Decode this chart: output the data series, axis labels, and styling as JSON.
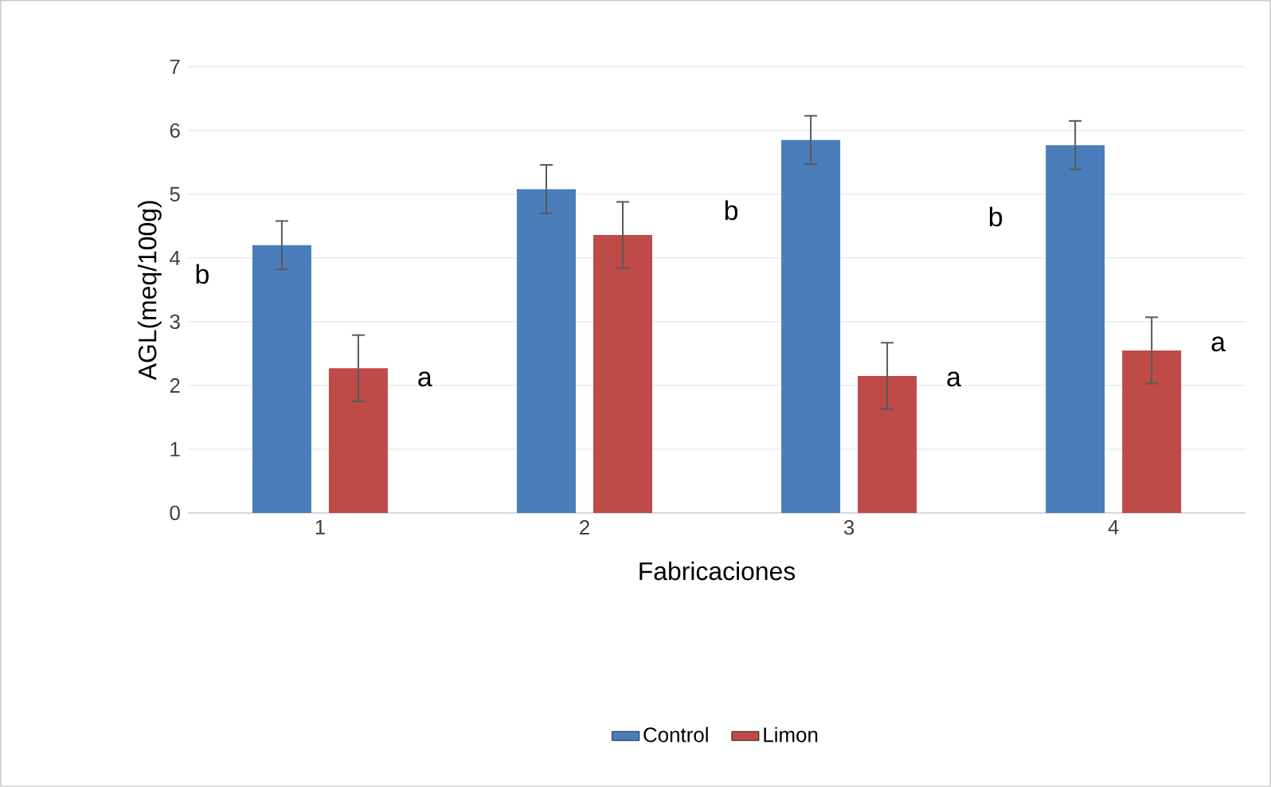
{
  "chart_data": {
    "type": "bar",
    "xlabel": "Fabricaciones",
    "ylabel": "AGL(meq/100g)",
    "categories": [
      "1",
      "2",
      "3",
      "4"
    ],
    "series": [
      {
        "name": "Control",
        "color": "#4a7ebb",
        "values": [
          4.2,
          5.08,
          5.85,
          5.77
        ],
        "errors": [
          0.38,
          0.38,
          0.38,
          0.38
        ]
      },
      {
        "name": "Limon",
        "color": "#be4b48",
        "values": [
          2.27,
          4.36,
          2.15,
          2.55
        ],
        "errors": [
          0.52,
          0.52,
          0.52,
          0.52
        ]
      }
    ],
    "annotations": [
      "b",
      "a",
      "b",
      "a",
      "b",
      "a"
    ],
    "ylim": [
      0,
      7
    ],
    "yticks": [
      0,
      1,
      2,
      3,
      4,
      5,
      6,
      7
    ],
    "grid": "y",
    "legend": "bottom"
  }
}
